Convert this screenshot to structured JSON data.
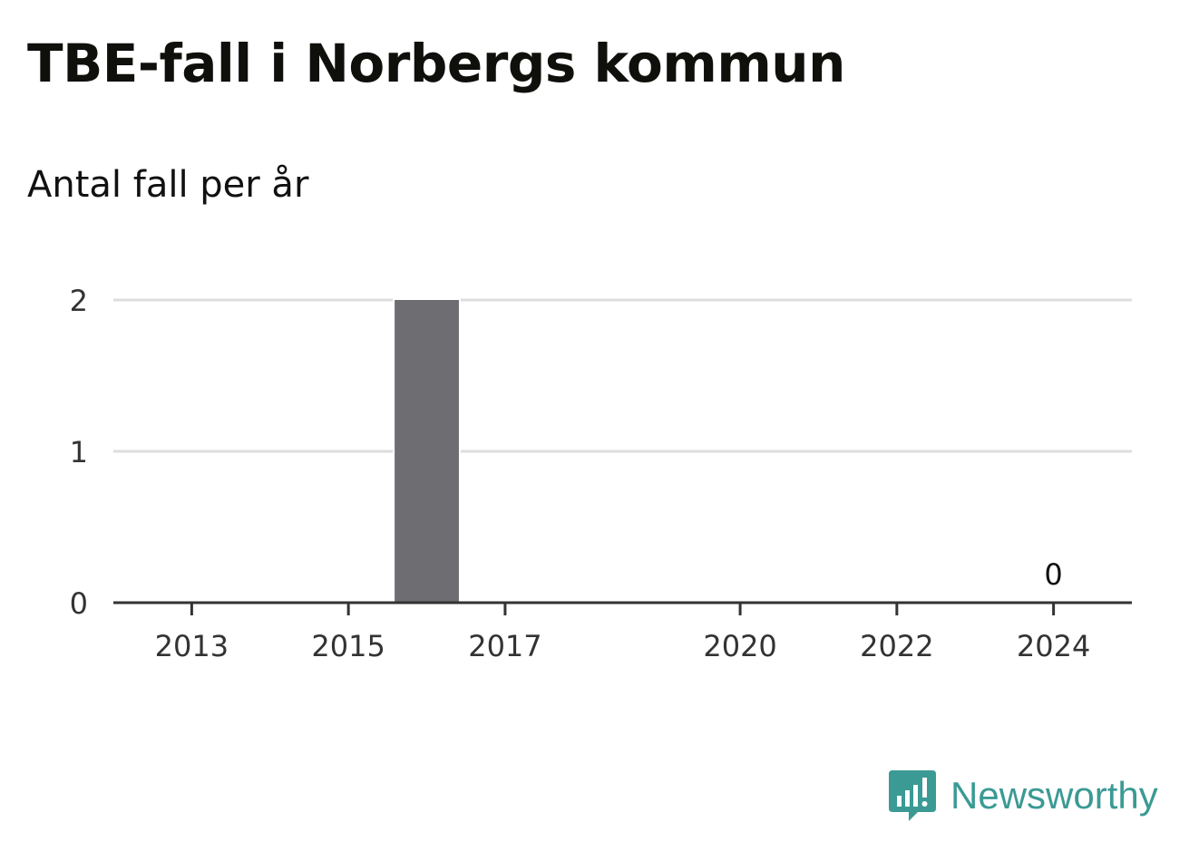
{
  "title": "TBE-fall i Norbergs kommun",
  "subtitle": "Antal fall per år",
  "brand": {
    "name": "Newsworthy",
    "icon": "newsworthy-logo-icon",
    "color": "#3b9a94"
  },
  "colors": {
    "bar": "#6e6d72",
    "grid": "#dddddd",
    "axis": "#333333",
    "tick_text": "#333333",
    "label_text": "#111111"
  },
  "chart_data": {
    "type": "bar",
    "x": [
      2013,
      2014,
      2015,
      2016,
      2017,
      2018,
      2019,
      2020,
      2021,
      2022,
      2023,
      2024
    ],
    "values": [
      0,
      0,
      0,
      2,
      0,
      0,
      0,
      0,
      0,
      0,
      0,
      0
    ],
    "xticks": [
      "2013",
      "2015",
      "2017",
      "2020",
      "2022",
      "2024"
    ],
    "yticks": [
      0,
      1,
      2
    ],
    "ylim": [
      0,
      2
    ],
    "xlim": [
      2012,
      2025
    ],
    "grid": true,
    "data_labels": [
      {
        "x": 2024,
        "text": "0"
      }
    ],
    "xlabel": "",
    "ylabel": ""
  }
}
